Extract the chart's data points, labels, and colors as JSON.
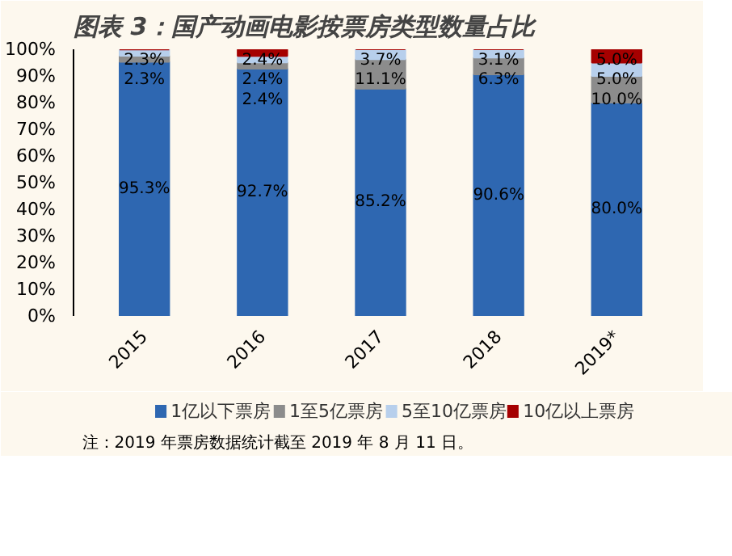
{
  "chart_data": {
    "type": "bar",
    "stacked": true,
    "title": "图表 3：国产动画电影按票房类型数量占比",
    "categories": [
      "2015",
      "2016",
      "2017",
      "2018",
      "2019*"
    ],
    "series": [
      {
        "name": "1亿以下票房",
        "color": "#2e67b1",
        "values": [
          95.3,
          92.7,
          85.2,
          90.6,
          80.0
        ],
        "value_labels": [
          "95.3%",
          "92.7%",
          "85.2%",
          "90.6%",
          "80.0%"
        ]
      },
      {
        "name": "1至5亿票房",
        "color": "#8c8c8c",
        "values": [
          2.3,
          2.4,
          11.1,
          6.3,
          10.0
        ],
        "value_labels": [
          "2.3%",
          "2.4%",
          "11.1%",
          "6.3%",
          "10.0%"
        ]
      },
      {
        "name": "5至10亿票房",
        "color": "#b7cfec",
        "values": [
          2.3,
          2.4,
          3.7,
          3.1,
          5.0
        ],
        "value_labels": [
          "2.3%",
          "2.4%",
          "3.7%",
          "3.1%",
          "5.0%"
        ]
      },
      {
        "name": "10亿以上票房",
        "color": "#a50000",
        "values": [
          0,
          2.4,
          0,
          0,
          5.0
        ],
        "value_labels": [
          null,
          "2.4%",
          null,
          null,
          "5.0%"
        ]
      }
    ],
    "ylim": [
      0,
      100
    ],
    "yticks": [
      {
        "value": 0,
        "label": "0%"
      },
      {
        "value": 10,
        "label": "10%"
      },
      {
        "value": 20,
        "label": "20%"
      },
      {
        "value": 30,
        "label": "30%"
      },
      {
        "value": 40,
        "label": "40%"
      },
      {
        "value": 50,
        "label": "50%"
      },
      {
        "value": 60,
        "label": "60%"
      },
      {
        "value": 70,
        "label": "70%"
      },
      {
        "value": 80,
        "label": "80%"
      },
      {
        "value": 90,
        "label": "90%"
      },
      {
        "value": 100,
        "label": "100%"
      }
    ],
    "grid": false,
    "legend": "bottom",
    "annotations": [
      "注：2019 年票房数据统计截至 2019 年 8 月 11 日。"
    ]
  }
}
